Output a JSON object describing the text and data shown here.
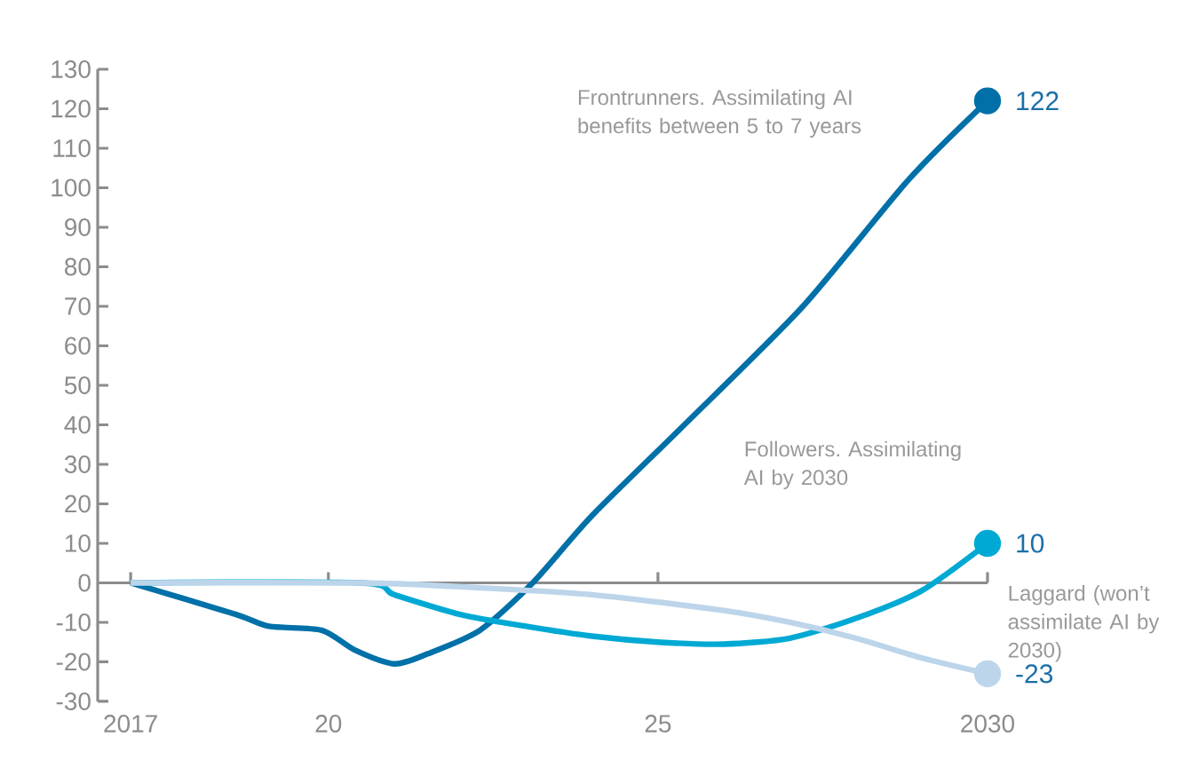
{
  "chart_data": {
    "type": "line",
    "xlim": [
      2016.5,
      2030
    ],
    "ylim": [
      -30,
      130
    ],
    "xticks": [
      {
        "value": 2017,
        "label": "2017"
      },
      {
        "value": 2020,
        "label": "20"
      },
      {
        "value": 2025,
        "label": "25"
      },
      {
        "value": 2030,
        "label": "2030"
      }
    ],
    "yticks": [
      -30,
      -20,
      -10,
      0,
      10,
      20,
      30,
      40,
      50,
      60,
      70,
      80,
      90,
      100,
      110,
      120,
      130
    ],
    "line_style": "solid",
    "series": [
      {
        "name": "Frontrunners. Assimilating AI benefits between 5 to 7 years",
        "color": "#0070a8",
        "x": [
          2017,
          2018.6,
          2019.1,
          2019.9,
          2020.4,
          2021,
          2021.5,
          2022.3,
          2023.1,
          2024,
          2025.4,
          2027.2,
          2028.8,
          2030
        ],
        "values": [
          0,
          -8,
          -11,
          -12,
          -17,
          -20.5,
          -18,
          -12,
          0,
          17,
          40,
          70,
          102,
          122
        ],
        "value_labels": [
          null,
          null,
          null,
          null,
          null,
          null,
          null,
          null,
          null,
          null,
          null,
          null,
          null,
          "122"
        ]
      },
      {
        "name": "Followers. Assimilating AI by 2030",
        "color": "#00a9d4",
        "x": [
          2017,
          2020.5,
          2021,
          2022,
          2023,
          2024,
          2025,
          2026,
          2027,
          2028,
          2029,
          2030
        ],
        "values": [
          0,
          0,
          -3,
          -8,
          -11,
          -13.5,
          -15,
          -15.5,
          -14,
          -9,
          -2,
          10
        ],
        "value_labels": [
          null,
          null,
          null,
          null,
          null,
          null,
          null,
          null,
          null,
          null,
          null,
          "10"
        ]
      },
      {
        "name": "Laggard (won’t assimilate AI by 2030)",
        "color": "#bcd5ea",
        "x": [
          2017,
          2020.5,
          2022,
          2024,
          2026,
          2027,
          2028,
          2029,
          2030
        ],
        "values": [
          0,
          0,
          -1,
          -3,
          -7,
          -10,
          -14,
          -19,
          -23
        ],
        "value_labels": [
          null,
          null,
          null,
          null,
          null,
          null,
          null,
          null,
          "-23"
        ]
      }
    ]
  }
}
